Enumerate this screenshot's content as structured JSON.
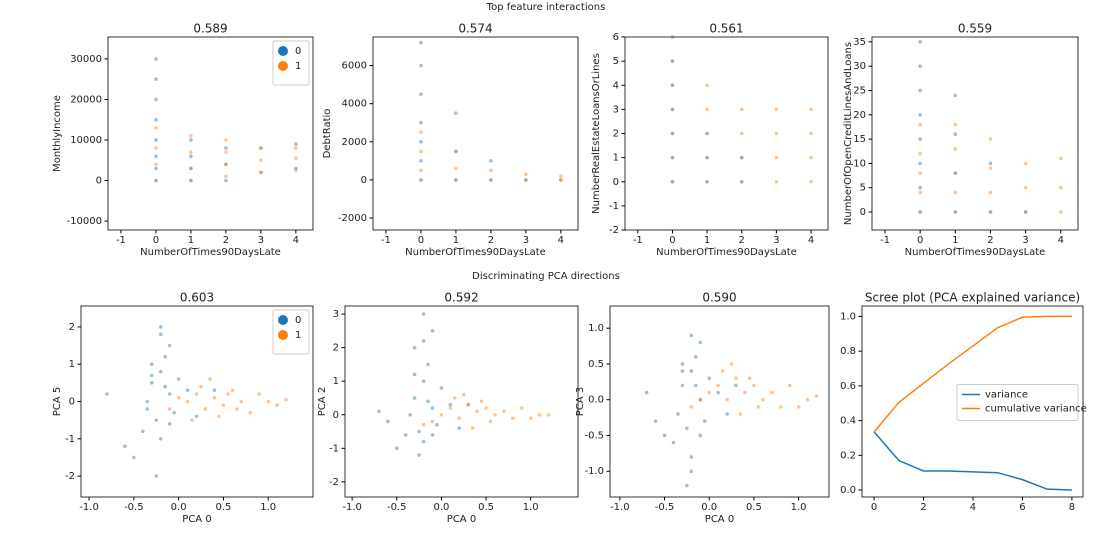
{
  "titles": [
    "Top feature interactions",
    "Discriminating PCA directions"
  ],
  "chart_data": [
    {
      "type": "scatter",
      "title": "0.589",
      "xlabel": "NumberOfTimes90DaysLate",
      "ylabel": "MonthlyIncome",
      "xlim": [
        -1.37,
        4.49
      ],
      "ylim": [
        -12200,
        35400
      ],
      "xticks": [
        -1,
        0,
        1,
        2,
        3,
        4
      ],
      "yticks": [
        -10000,
        0,
        10000,
        20000,
        30000
      ],
      "legend": "upper right",
      "series": [
        {
          "name": "0",
          "color": "#1f77b4",
          "x": [
            0,
            0,
            0,
            0,
            0,
            0,
            0,
            0,
            1,
            1,
            1,
            1,
            2,
            2,
            2,
            3,
            3,
            4,
            4
          ],
          "values": [
            0,
            3000,
            6000,
            10000,
            15000,
            20000,
            25000,
            30000,
            0,
            3000,
            6000,
            10000,
            0,
            4000,
            8000,
            2000,
            8000,
            3000,
            9000
          ]
        },
        {
          "name": "1",
          "color": "#ff7f0e",
          "x": [
            0,
            0,
            0,
            0,
            1,
            1,
            1,
            1,
            2,
            2,
            2,
            2,
            3,
            3,
            3,
            4,
            4,
            4
          ],
          "values": [
            0,
            4000,
            8000,
            13000,
            0,
            3000,
            7000,
            11000,
            1000,
            4000,
            7000,
            10000,
            2000,
            5000,
            8000,
            2500,
            5500,
            8000
          ]
        }
      ]
    },
    {
      "type": "scatter",
      "title": "0.574",
      "xlabel": "NumberOfTimes90DaysLate",
      "ylabel": "DebtRatio",
      "xlim": [
        -1.37,
        4.49
      ],
      "ylim": [
        -2630,
        7500
      ],
      "xticks": [
        -1,
        0,
        1,
        2,
        3,
        4
      ],
      "yticks": [
        -2000,
        0,
        2000,
        4000,
        6000
      ],
      "series": [
        {
          "name": "0",
          "color": "#1f77b4",
          "x": [
            0,
            0,
            0,
            0,
            0,
            0,
            0,
            1,
            1,
            1,
            2,
            2,
            3,
            4
          ],
          "values": [
            0,
            1000,
            2000,
            3000,
            4500,
            6000,
            7200,
            0,
            1500,
            3500,
            0,
            1000,
            0,
            0
          ]
        },
        {
          "name": "1",
          "color": "#ff7f0e",
          "x": [
            0,
            0,
            0,
            0,
            1,
            1,
            1,
            2,
            2,
            3,
            3,
            4,
            4
          ],
          "values": [
            0,
            500,
            1500,
            2500,
            0,
            600,
            1500,
            0,
            500,
            0,
            300,
            0,
            200
          ]
        }
      ]
    },
    {
      "type": "scatter",
      "title": "0.561",
      "xlabel": "NumberOfTimes90DaysLate",
      "ylabel": "NumberRealEstateLoansOrLines",
      "xlim": [
        -1.37,
        4.49
      ],
      "ylim": [
        -2,
        6
      ],
      "xticks": [
        -1,
        0,
        1,
        2,
        3,
        4
      ],
      "yticks": [
        -2,
        -1,
        0,
        1,
        2,
        3,
        4,
        5,
        6
      ],
      "series": [
        {
          "name": "0",
          "color": "#1f77b4",
          "x": [
            0,
            0,
            0,
            0,
            0,
            0,
            0,
            1,
            1,
            1,
            2,
            2
          ],
          "values": [
            0,
            1,
            2,
            3,
            4,
            5,
            6,
            0,
            1,
            2,
            0,
            1
          ]
        },
        {
          "name": "1",
          "color": "#ff7f0e",
          "x": [
            0,
            0,
            0,
            0,
            0,
            0,
            1,
            1,
            1,
            1,
            1,
            2,
            2,
            2,
            2,
            3,
            3,
            3,
            3,
            4,
            4,
            4,
            4
          ],
          "values": [
            0,
            1,
            2,
            3,
            4,
            5,
            0,
            1,
            2,
            3,
            4,
            0,
            1,
            2,
            3,
            0,
            1,
            2,
            3,
            0,
            1,
            2,
            3
          ]
        }
      ]
    },
    {
      "type": "scatter",
      "title": "0.559",
      "xlabel": "NumberOfTimes90DaysLate",
      "ylabel": "NumberOfOpenCreditLinesAndLoans",
      "xlim": [
        -1.37,
        4.49
      ],
      "ylim": [
        -3.7,
        36
      ],
      "xticks": [
        -1,
        0,
        1,
        2,
        3,
        4
      ],
      "yticks": [
        0,
        5,
        10,
        15,
        20,
        25,
        30,
        35
      ],
      "series": [
        {
          "name": "0",
          "color": "#1f77b4",
          "x": [
            0,
            0,
            0,
            0,
            0,
            0,
            0,
            0,
            1,
            1,
            1,
            1,
            2,
            2,
            3
          ],
          "values": [
            0,
            5,
            10,
            15,
            20,
            25,
            30,
            35,
            0,
            8,
            16,
            24,
            0,
            10,
            0
          ]
        },
        {
          "name": "1",
          "color": "#ff7f0e",
          "x": [
            0,
            0,
            0,
            0,
            0,
            1,
            1,
            1,
            1,
            1,
            2,
            2,
            2,
            2,
            3,
            3,
            3,
            4,
            4,
            4
          ],
          "values": [
            0,
            4,
            8,
            12,
            18,
            0,
            4,
            8,
            13,
            18,
            0,
            4,
            9,
            15,
            0,
            5,
            10,
            0,
            5,
            11
          ]
        }
      ]
    },
    {
      "type": "scatter",
      "title": "0.603",
      "xlabel": "PCA 0",
      "ylabel": "PCA 5",
      "xlim": [
        -1.09,
        1.5
      ],
      "ylim": [
        -2.56,
        2.56
      ],
      "xticks": [
        {
          "value": -1,
          "label": "-1.0"
        },
        -0.5,
        {
          "value": 0,
          "label": "0.0"
        },
        0.5,
        {
          "value": 1,
          "label": "1.0"
        }
      ],
      "yticks": [
        -2,
        -1,
        0,
        1,
        2
      ],
      "legend": "upper right",
      "series": [
        {
          "name": "0",
          "color": "#1f77b4",
          "x": [
            -0.3,
            -0.2,
            -0.1,
            -0.25,
            -0.15,
            -0.35,
            -0.2,
            -0.05,
            0.0,
            -0.4,
            -0.3,
            -0.1,
            -0.2,
            -0.5,
            0.1,
            -0.25,
            -0.15,
            -0.3,
            -0.6,
            0.2,
            -0.1,
            -0.2,
            -0.8,
            0.4,
            -0.35
          ],
          "values": [
            0.5,
            0.8,
            0.2,
            -0.5,
            1.2,
            0,
            -1,
            -0.3,
            0.6,
            -0.8,
            1.0,
            1.5,
            2.0,
            -1.5,
            0.3,
            -2,
            0.4,
            0.7,
            -1.2,
            -0.4,
            -0.6,
            1.8,
            0.2,
            0.3,
            -0.2
          ]
        },
        {
          "name": "1",
          "color": "#ff7f0e",
          "x": [
            0.1,
            0.2,
            0.3,
            0.4,
            0.5,
            0.6,
            0.7,
            0.8,
            0.9,
            1.0,
            1.1,
            -0.1,
            0.0,
            0.15,
            0.25,
            0.35,
            0.45,
            0.55,
            0.65,
            1.2
          ],
          "values": [
            0,
            0.2,
            -0.2,
            0.1,
            -0.1,
            0.3,
            0,
            -0.3,
            0.2,
            0,
            -0.1,
            -0.2,
            0.1,
            -0.5,
            0.4,
            0.6,
            -0.4,
            0.2,
            -0.2,
            0.05
          ]
        }
      ]
    },
    {
      "type": "scatter",
      "title": "0.592",
      "xlabel": "PCA 0",
      "ylabel": "PCA 2",
      "xlim": [
        -1.08,
        1.53
      ],
      "ylim": [
        -2.45,
        3.24
      ],
      "xticks": [
        {
          "value": -1,
          "label": "-1.0"
        },
        -0.5,
        {
          "value": 0,
          "label": "0.0"
        },
        0.5,
        {
          "value": 1,
          "label": "1.0"
        }
      ],
      "yticks": [
        -2,
        -1,
        0,
        1,
        2,
        3
      ],
      "series": [
        {
          "name": "0",
          "color": "#1f77b4",
          "x": [
            -0.3,
            -0.2,
            -0.1,
            -0.25,
            -0.15,
            -0.35,
            -0.2,
            -0.05,
            0.0,
            -0.4,
            -0.3,
            -0.1,
            -0.2,
            -0.5,
            0.1,
            -0.25,
            -0.15,
            -0.3,
            -0.6,
            0.2,
            -0.1,
            -0.2,
            -0.7,
            0.3
          ],
          "values": [
            0.5,
            1.0,
            0.2,
            -0.5,
            1.5,
            0,
            -0.8,
            -0.3,
            0.8,
            -0.6,
            2.0,
            2.5,
            3.0,
            -1.0,
            0.3,
            -1.2,
            0.4,
            1.2,
            -0.2,
            -0.4,
            -0.6,
            2.2,
            0.1,
            0.3
          ]
        },
        {
          "name": "1",
          "color": "#ff7f0e",
          "x": [
            0.0,
            0.1,
            0.2,
            0.3,
            0.4,
            0.5,
            0.6,
            0.7,
            0.8,
            0.9,
            1.0,
            1.1,
            -0.1,
            -0.2,
            0.15,
            0.25,
            0.35,
            0.45,
            0.55,
            1.2
          ],
          "values": [
            0,
            0.2,
            -0.1,
            0.3,
            0.1,
            0.2,
            0,
            0.1,
            -0.1,
            0.2,
            -0.1,
            0,
            -0.2,
            -0.3,
            0.5,
            0.6,
            -0.4,
            0.4,
            -0.2,
            0.0
          ]
        }
      ]
    },
    {
      "type": "scatter",
      "title": "0.590",
      "xlabel": "PCA 0",
      "ylabel": "PCA 3",
      "xlim": [
        -1.11,
        1.34
      ],
      "ylim": [
        -1.36,
        1.31
      ],
      "xticks": [
        {
          "value": -1,
          "label": "-1.0"
        },
        -0.5,
        {
          "value": 0,
          "label": "0.0"
        },
        0.5,
        {
          "value": 1,
          "label": "1.0"
        }
      ],
      "yticks": [
        {
          "value": -1,
          "label": "-1.0"
        },
        -0.5,
        {
          "value": 0,
          "label": "0.0"
        },
        0.5,
        {
          "value": 1,
          "label": "1.0"
        }
      ],
      "series": [
        {
          "name": "0",
          "color": "#1f77b4",
          "x": [
            -0.3,
            -0.2,
            -0.1,
            -0.25,
            -0.15,
            -0.35,
            -0.2,
            -0.05,
            0.0,
            -0.4,
            -0.3,
            -0.1,
            -0.2,
            -0.5,
            0.1,
            -0.25,
            -0.15,
            -0.3,
            -0.6,
            0.2,
            -0.1,
            -0.2,
            -0.7,
            0.3
          ],
          "values": [
            0.2,
            0.4,
            0,
            -0.4,
            0.6,
            -0.2,
            -0.8,
            -0.3,
            0.3,
            -0.6,
            0.5,
            0.8,
            -1.0,
            -0.5,
            0.1,
            -1.2,
            0.2,
            0.4,
            -0.3,
            -0.2,
            -0.5,
            0.9,
            0.1,
            0.2
          ]
        },
        {
          "name": "1",
          "color": "#ff7f0e",
          "x": [
            0.0,
            0.1,
            0.2,
            0.3,
            0.4,
            0.5,
            0.6,
            0.7,
            0.8,
            0.9,
            1.0,
            1.1,
            -0.1,
            -0.2,
            0.15,
            0.25,
            0.35,
            0.45,
            0.55,
            1.2
          ],
          "values": [
            0.1,
            0.2,
            0,
            0.3,
            0.1,
            0.2,
            0,
            0.1,
            -0.1,
            0.2,
            -0.1,
            0,
            0,
            -0.1,
            0.4,
            0.5,
            -0.2,
            0.3,
            -0.1,
            0.05
          ]
        }
      ]
    },
    {
      "type": "line",
      "title": "Scree plot (PCA explained variance)",
      "xlim": [
        -0.49,
        8.45
      ],
      "ylim": [
        -0.04,
        1.06
      ],
      "xticks": [
        0,
        2,
        4,
        6,
        8
      ],
      "yticks": [
        {
          "value": 0,
          "label": "0.0"
        },
        0.2,
        0.4,
        0.6,
        0.8,
        {
          "value": 1,
          "label": "1.0"
        }
      ],
      "legend": "center right",
      "series": [
        {
          "name": "variance",
          "color": "#1f77b4",
          "x": [
            0,
            1,
            2,
            3,
            4,
            5,
            6,
            7,
            8
          ],
          "values": [
            0.335,
            0.17,
            0.11,
            0.11,
            0.105,
            0.1,
            0.06,
            0.005,
            0.0
          ]
        },
        {
          "name": "cumulative variance",
          "color": "#ff7f0e",
          "x": [
            0,
            1,
            2,
            3,
            4,
            5,
            6,
            7,
            8
          ],
          "values": [
            0.335,
            0.505,
            0.615,
            0.725,
            0.83,
            0.935,
            0.995,
            1.0,
            1.0
          ]
        }
      ]
    }
  ]
}
